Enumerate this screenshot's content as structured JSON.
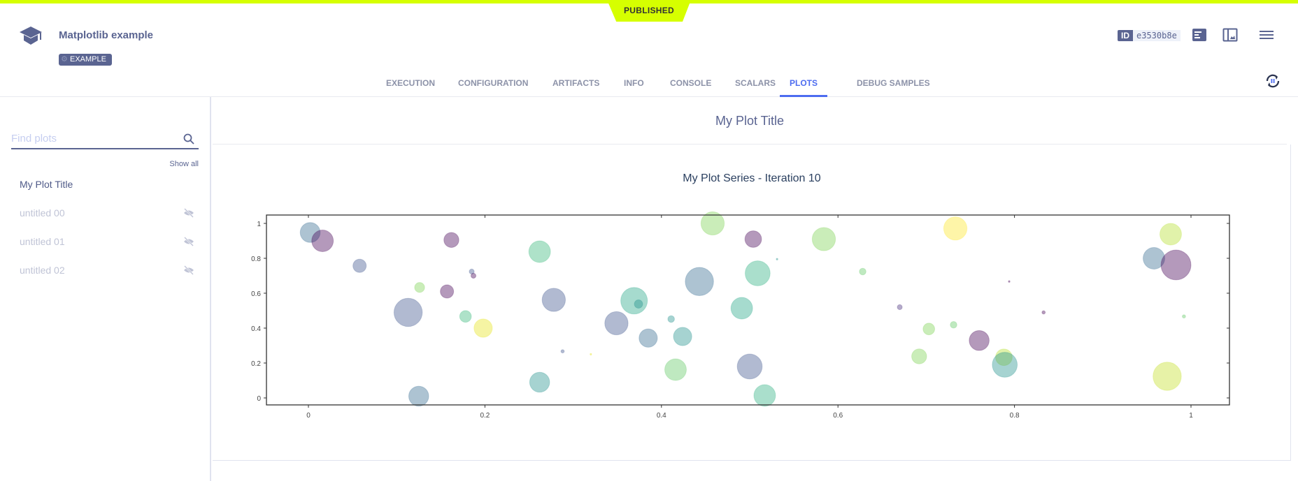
{
  "status_label": "PUBLISHED",
  "header": {
    "title": "Matplotlib example",
    "tag": "EXAMPLE",
    "id_label": "ID",
    "id_value": "e3530b8e",
    "icons": [
      "info-panel-icon",
      "layout-icon",
      "menu-icon",
      "refresh-pause-icon"
    ]
  },
  "tabs": [
    {
      "label": "EXECUTION"
    },
    {
      "label": "CONFIGURATION"
    },
    {
      "label": "ARTIFACTS"
    },
    {
      "label": "INFO"
    },
    {
      "label": "CONSOLE"
    },
    {
      "label": "SCALARS"
    },
    {
      "label": "PLOTS",
      "active": true
    },
    {
      "label": "DEBUG SAMPLES"
    }
  ],
  "sidebar": {
    "search_placeholder": "Find plots",
    "show_all": "Show all",
    "items": [
      {
        "label": "My Plot Title",
        "visible": true
      },
      {
        "label": "untitled 00",
        "visible": false
      },
      {
        "label": "untitled 01",
        "visible": false
      },
      {
        "label": "untitled 02",
        "visible": false
      }
    ]
  },
  "main": {
    "plot_group_title": "My Plot Title"
  },
  "chart_data": {
    "type": "scatter",
    "title": "My Plot Series - Iteration 10",
    "xlabel": "",
    "ylabel": "",
    "xlim": [
      -0.05,
      1.045
    ],
    "ylim": [
      -0.04,
      1.05
    ],
    "xticks": [
      "0",
      "0.2",
      "0.4",
      "0.6",
      "0.8",
      "1"
    ],
    "yticks": [
      "0",
      "0.2",
      "0.4",
      "0.6",
      "0.8",
      "1"
    ],
    "grid": false,
    "opacity": 0.4,
    "points": [
      {
        "x": 0.002,
        "y": 0.948,
        "size": 12,
        "color": "#31688e"
      },
      {
        "x": 0.016,
        "y": 0.9,
        "size": 13,
        "color": "#440154"
      },
      {
        "x": 0.058,
        "y": 0.757,
        "size": 8,
        "color": "#3b528b"
      },
      {
        "x": 0.113,
        "y": 0.49,
        "size": 17,
        "color": "#3b528b"
      },
      {
        "x": 0.125,
        "y": 0.01,
        "size": 12,
        "color": "#31688e"
      },
      {
        "x": 0.126,
        "y": 0.633,
        "size": 6,
        "color": "#7ad151"
      },
      {
        "x": 0.157,
        "y": 0.61,
        "size": 8,
        "color": "#440154"
      },
      {
        "x": 0.162,
        "y": 0.905,
        "size": 9,
        "color": "#440154"
      },
      {
        "x": 0.178,
        "y": 0.467,
        "size": 7,
        "color": "#35b779"
      },
      {
        "x": 0.185,
        "y": 0.724,
        "size": 3,
        "color": "#3b528b"
      },
      {
        "x": 0.187,
        "y": 0.7,
        "size": 3,
        "color": "#440154"
      },
      {
        "x": 0.198,
        "y": 0.4,
        "size": 11,
        "color": "#e5e419"
      },
      {
        "x": 0.262,
        "y": 0.838,
        "size": 13,
        "color": "#35b779"
      },
      {
        "x": 0.262,
        "y": 0.09,
        "size": 12,
        "color": "#21918c"
      },
      {
        "x": 0.278,
        "y": 0.562,
        "size": 14,
        "color": "#3b528b"
      },
      {
        "x": 0.288,
        "y": 0.267,
        "size": 2,
        "color": "#3b528b"
      },
      {
        "x": 0.32,
        "y": 0.25,
        "size": 1,
        "color": "#e5e419"
      },
      {
        "x": 0.349,
        "y": 0.428,
        "size": 14,
        "color": "#3b528b"
      },
      {
        "x": 0.369,
        "y": 0.557,
        "size": 16,
        "color": "#21a585"
      },
      {
        "x": 0.374,
        "y": 0.538,
        "size": 5,
        "color": "#21918c"
      },
      {
        "x": 0.385,
        "y": 0.343,
        "size": 11,
        "color": "#31688e"
      },
      {
        "x": 0.411,
        "y": 0.452,
        "size": 4,
        "color": "#21918c"
      },
      {
        "x": 0.424,
        "y": 0.352,
        "size": 11,
        "color": "#21918c"
      },
      {
        "x": 0.416,
        "y": 0.162,
        "size": 13,
        "color": "#5ec962"
      },
      {
        "x": 0.443,
        "y": 0.667,
        "size": 17,
        "color": "#31688e"
      },
      {
        "x": 0.458,
        "y": 1.0,
        "size": 14,
        "color": "#7ad151"
      },
      {
        "x": 0.491,
        "y": 0.514,
        "size": 13,
        "color": "#21a585"
      },
      {
        "x": 0.5,
        "y": 0.18,
        "size": 15,
        "color": "#3b528b"
      },
      {
        "x": 0.504,
        "y": 0.91,
        "size": 10,
        "color": "#440154"
      },
      {
        "x": 0.509,
        "y": 0.714,
        "size": 15,
        "color": "#2ab07f"
      },
      {
        "x": 0.517,
        "y": 0.014,
        "size": 13,
        "color": "#2ab07f"
      },
      {
        "x": 0.531,
        "y": 0.795,
        "size": 1,
        "color": "#21918c"
      },
      {
        "x": 0.584,
        "y": 0.91,
        "size": 14,
        "color": "#7ad151"
      },
      {
        "x": 0.628,
        "y": 0.724,
        "size": 4,
        "color": "#5ec962"
      },
      {
        "x": 0.67,
        "y": 0.52,
        "size": 3,
        "color": "#472d7b"
      },
      {
        "x": 0.703,
        "y": 0.395,
        "size": 7,
        "color": "#7ad151"
      },
      {
        "x": 0.692,
        "y": 0.238,
        "size": 9,
        "color": "#7ad151"
      },
      {
        "x": 0.731,
        "y": 0.419,
        "size": 4,
        "color": "#5ec962"
      },
      {
        "x": 0.733,
        "y": 0.971,
        "size": 14,
        "color": "#fde725"
      },
      {
        "x": 0.76,
        "y": 0.329,
        "size": 12,
        "color": "#440154"
      },
      {
        "x": 0.788,
        "y": 0.233,
        "size": 10,
        "color": "#b5de2b"
      },
      {
        "x": 0.789,
        "y": 0.19,
        "size": 15,
        "color": "#21918c"
      },
      {
        "x": 0.794,
        "y": 0.667,
        "size": 1,
        "color": "#440154"
      },
      {
        "x": 0.833,
        "y": 0.49,
        "size": 2,
        "color": "#440154"
      },
      {
        "x": 0.958,
        "y": 0.8,
        "size": 13,
        "color": "#31688e"
      },
      {
        "x": 0.977,
        "y": 0.938,
        "size": 13,
        "color": "#b5de2b"
      },
      {
        "x": 0.983,
        "y": 0.762,
        "size": 18,
        "color": "#440154"
      },
      {
        "x": 0.973,
        "y": 0.124,
        "size": 17,
        "color": "#c2df23"
      },
      {
        "x": 0.992,
        "y": 0.467,
        "size": 2,
        "color": "#5ec962"
      }
    ]
  }
}
